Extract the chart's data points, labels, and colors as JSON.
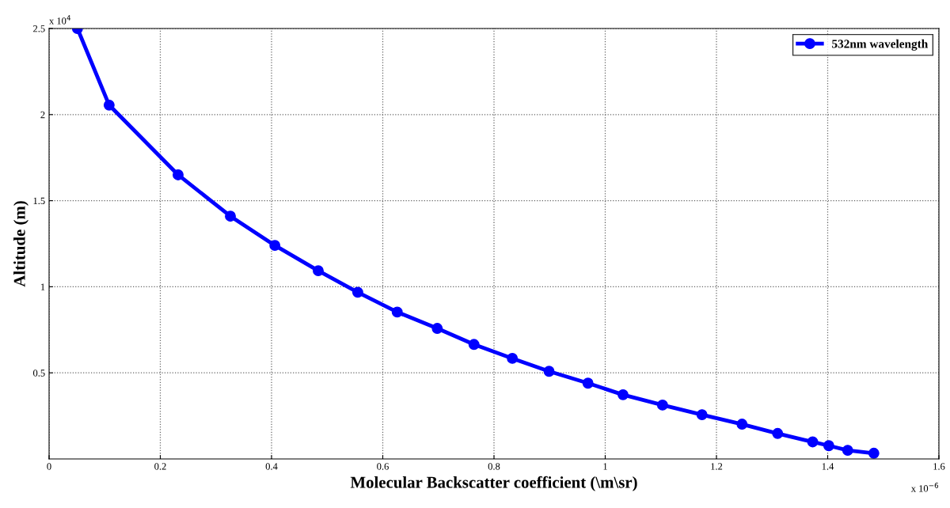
{
  "chart_data": {
    "type": "line",
    "xlabel": "Molecular Backscatter coefficient (\\m\\sr)",
    "ylabel": "Altitude (m)",
    "x": [
      0.051,
      0.108,
      0.232,
      0.326,
      0.406,
      0.484,
      0.555,
      0.626,
      0.698,
      0.764,
      0.833,
      0.899,
      0.969,
      1.032,
      1.103,
      1.174,
      1.246,
      1.31,
      1.373,
      1.402,
      1.436,
      1.483
    ],
    "series": [
      {
        "name": "532nm wavelength",
        "color": "#0000ff",
        "values": [
          2.5,
          2.055,
          1.65,
          1.41,
          1.24,
          1.093,
          0.968,
          0.853,
          0.758,
          0.665,
          0.584,
          0.509,
          0.44,
          0.373,
          0.313,
          0.257,
          0.202,
          0.148,
          0.099,
          0.077,
          0.05,
          0.033
        ]
      }
    ],
    "xlim": [
      0,
      1.6
    ],
    "ylim": [
      0,
      2.5
    ],
    "xticks": [
      0,
      0.2,
      0.4,
      0.6,
      0.8,
      1,
      1.2,
      1.4,
      1.6
    ],
    "yticks": [
      0.5,
      1,
      1.5,
      2,
      2.5
    ],
    "annotations": [
      "x 10$^{4}$",
      "x 10$^{−6}$"
    ],
    "grid": true,
    "legend": "top right",
    "marker": "circle",
    "line_style": "solid"
  }
}
